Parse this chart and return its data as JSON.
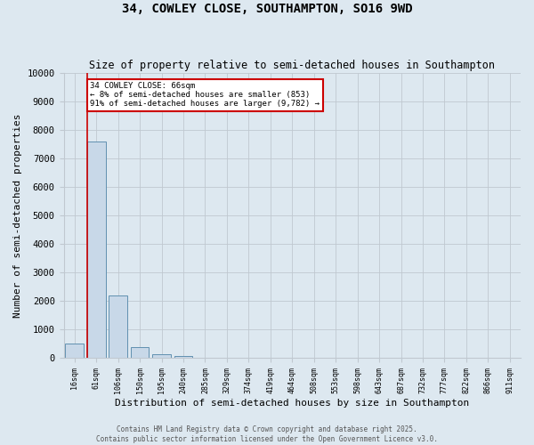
{
  "title": "34, COWLEY CLOSE, SOUTHAMPTON, SO16 9WD",
  "subtitle": "Size of property relative to semi-detached houses in Southampton",
  "xlabel": "Distribution of semi-detached houses by size in Southampton",
  "ylabel": "Number of semi-detached properties",
  "footer_line1": "Contains HM Land Registry data © Crown copyright and database right 2025.",
  "footer_line2": "Contains public sector information licensed under the Open Government Licence v3.0.",
  "categories": [
    "16sqm",
    "61sqm",
    "106sqm",
    "150sqm",
    "195sqm",
    "240sqm",
    "285sqm",
    "329sqm",
    "374sqm",
    "419sqm",
    "464sqm",
    "508sqm",
    "553sqm",
    "598sqm",
    "643sqm",
    "687sqm",
    "732sqm",
    "777sqm",
    "822sqm",
    "866sqm",
    "911sqm"
  ],
  "values": [
    500,
    7600,
    2200,
    380,
    120,
    80,
    0,
    0,
    0,
    0,
    0,
    0,
    0,
    0,
    0,
    0,
    0,
    0,
    0,
    0,
    0
  ],
  "bar_color": "#c8d8e8",
  "bar_edgecolor": "#6090b0",
  "ylim": [
    0,
    10000
  ],
  "yticks": [
    0,
    1000,
    2000,
    3000,
    4000,
    5000,
    6000,
    7000,
    8000,
    9000,
    10000
  ],
  "vline_color": "#cc0000",
  "annotation_line1": "34 COWLEY CLOSE: 66sqm",
  "annotation_line2": "← 8% of semi-detached houses are smaller (853)",
  "annotation_line3": "91% of semi-detached houses are larger (9,782) →",
  "annotation_box_edgecolor": "#cc0000",
  "annotation_box_facecolor": "#ffffff",
  "grid_color": "#c0c8d0",
  "background_color": "#dde8f0"
}
